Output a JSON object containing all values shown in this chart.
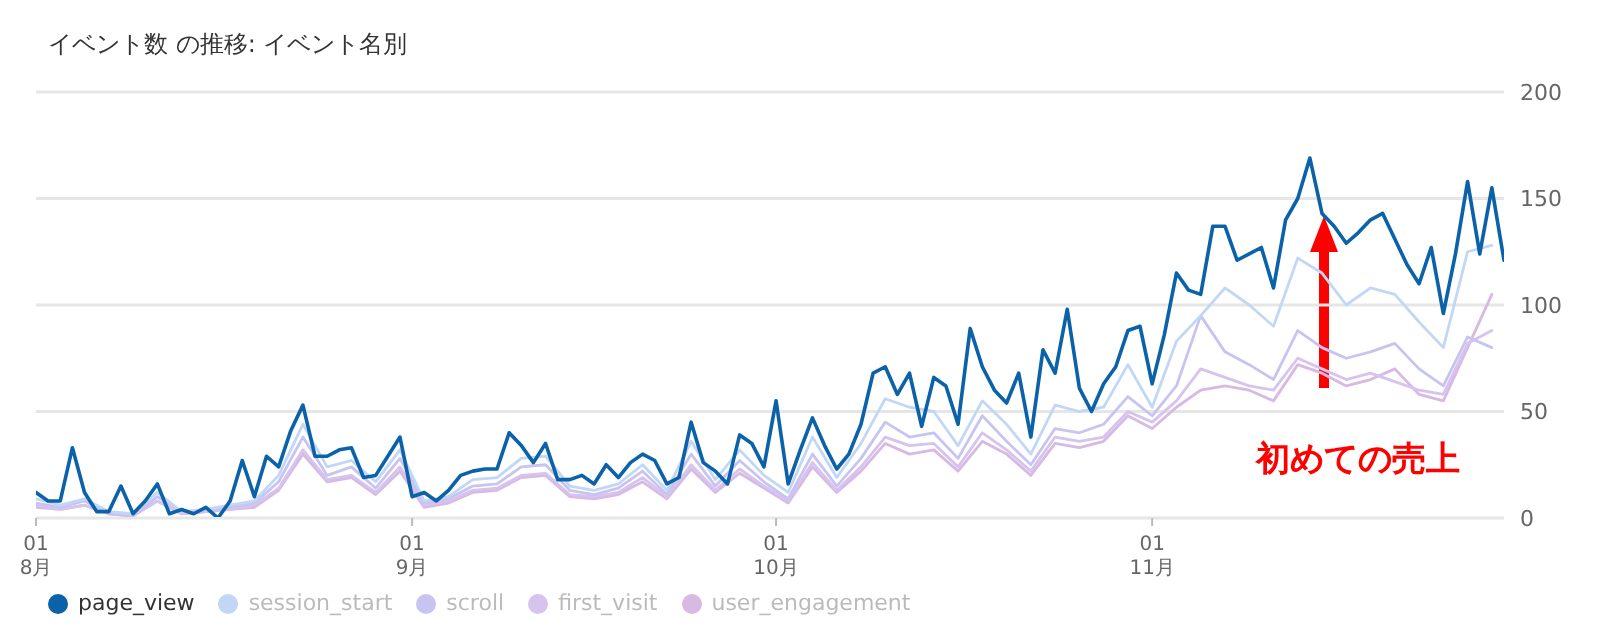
{
  "chart_data": {
    "type": "line",
    "title": "イベント数 の推移: イベント名別",
    "xlim": [
      "--08-01",
      "--11-30"
    ],
    "xticks": [
      {
        "value": "--08-01",
        "label": "01\n8月"
      },
      {
        "value": "--09-01",
        "label": "01\n9月"
      },
      {
        "value": "--10-01",
        "label": "01\n10月"
      },
      {
        "value": "--11-01",
        "label": "01\n11月"
      }
    ],
    "ylim": [
      0,
      200
    ],
    "yticks": [
      0,
      50,
      100,
      150,
      200
    ],
    "grid": "y",
    "legend": "bottom left",
    "marker": "none",
    "line_style": "solid",
    "x": [
      "--08-01",
      "--08-03",
      "--08-05",
      "--08-07",
      "--08-09",
      "--08-11",
      "--08-13",
      "--08-15",
      "--08-17",
      "--08-19",
      "--08-21",
      "--08-23",
      "--08-25",
      "--08-27",
      "--08-29",
      "--08-31",
      "--09-02",
      "--09-04",
      "--09-06",
      "--09-08",
      "--09-10",
      "--09-12",
      "--09-14",
      "--09-16",
      "--09-18",
      "--09-20",
      "--09-22",
      "--09-24",
      "--09-26",
      "--09-28",
      "--09-30",
      "--10-02",
      "--10-04",
      "--10-06",
      "--10-08",
      "--10-10",
      "--10-12",
      "--10-14",
      "--10-16",
      "--10-18",
      "--10-20",
      "--10-22",
      "--10-24",
      "--10-26",
      "--10-28",
      "--10-30",
      "--11-01",
      "--11-03",
      "--11-05",
      "--11-07",
      "--11-09",
      "--11-11",
      "--11-13",
      "--11-15",
      "--11-17",
      "--11-19",
      "--11-21",
      "--11-23",
      "--11-25",
      "--11-27",
      "--11-29"
    ],
    "series": [
      {
        "name": "page_view",
        "color": "#0b62a8",
        "x": [
          "--08-01",
          "--08-02",
          "--08-03",
          "--08-04",
          "--08-05",
          "--08-06",
          "--08-07",
          "--08-08",
          "--08-09",
          "--08-10",
          "--08-11",
          "--08-12",
          "--08-13",
          "--08-14",
          "--08-15",
          "--08-16",
          "--08-17",
          "--08-18",
          "--08-19",
          "--08-20",
          "--08-21",
          "--08-22",
          "--08-23",
          "--08-24",
          "--08-25",
          "--08-26",
          "--08-27",
          "--08-28",
          "--08-29",
          "--08-30",
          "--08-31",
          "--09-01",
          "--09-02",
          "--09-03",
          "--09-04",
          "--09-05",
          "--09-06",
          "--09-07",
          "--09-08",
          "--09-09",
          "--09-10",
          "--09-11",
          "--09-12",
          "--09-13",
          "--09-14",
          "--09-15",
          "--09-16",
          "--09-17",
          "--09-18",
          "--09-19",
          "--09-20",
          "--09-21",
          "--09-22",
          "--09-23",
          "--09-24",
          "--09-25",
          "--09-26",
          "--09-27",
          "--09-28",
          "--09-29",
          "--09-30",
          "--10-01",
          "--10-02",
          "--10-03",
          "--10-04",
          "--10-05",
          "--10-06",
          "--10-07",
          "--10-08",
          "--10-09",
          "--10-10",
          "--10-11",
          "--10-12",
          "--10-13",
          "--10-14",
          "--10-15",
          "--10-16",
          "--10-17",
          "--10-18",
          "--10-19",
          "--10-20",
          "--10-21",
          "--10-22",
          "--10-23",
          "--10-24",
          "--10-25",
          "--10-26",
          "--10-27",
          "--10-28",
          "--10-29",
          "--10-30",
          "--10-31",
          "--11-01",
          "--11-02",
          "--11-03",
          "--11-04",
          "--11-05",
          "--11-06",
          "--11-07",
          "--11-08",
          "--11-09",
          "--11-10",
          "--11-11",
          "--11-12",
          "--11-13",
          "--11-14",
          "--11-15",
          "--11-16",
          "--11-17",
          "--11-18",
          "--11-19",
          "--11-20",
          "--11-21",
          "--11-22",
          "--11-23",
          "--11-24",
          "--11-25",
          "--11-26",
          "--11-27",
          "--11-28",
          "--11-29",
          "--11-30"
        ],
        "values": [
          12,
          8,
          8,
          33,
          12,
          3,
          3,
          15,
          2,
          8,
          16,
          2,
          4,
          2,
          5,
          0,
          8,
          27,
          10,
          29,
          24,
          41,
          53,
          29,
          29,
          32,
          33,
          19,
          20,
          29,
          38,
          10,
          12,
          8,
          13,
          20,
          22,
          23,
          23,
          40,
          34,
          26,
          35,
          18,
          18,
          20,
          16,
          25,
          19,
          26,
          30,
          27,
          16,
          19,
          45,
          26,
          22,
          16,
          39,
          35,
          24,
          55,
          16,
          32,
          47,
          34,
          23,
          30,
          44,
          68,
          71,
          58,
          68,
          43,
          66,
          62,
          44,
          89,
          71,
          60,
          54,
          68,
          38,
          79,
          68,
          98,
          61,
          50,
          63,
          71,
          88,
          90,
          63,
          86,
          115,
          107,
          105,
          137,
          137,
          121,
          124,
          127,
          108,
          140,
          150,
          169,
          143,
          137,
          129,
          134,
          140,
          143,
          131,
          119,
          110,
          127,
          96,
          124,
          158,
          124,
          155,
          121
        ]
      },
      {
        "name": "session_start",
        "color": "#c2d7f5",
        "values": [
          9,
          6,
          9,
          3,
          2,
          12,
          3,
          4,
          6,
          8,
          20,
          44,
          24,
          27,
          17,
          32,
          8,
          10,
          18,
          19,
          28,
          29,
          15,
          13,
          16,
          25,
          13,
          36,
          18,
          32,
          20,
          12,
          38,
          19,
          35,
          56,
          52,
          50,
          34,
          55,
          44,
          30,
          53,
          50,
          52,
          72,
          52,
          83,
          95,
          108,
          100,
          90,
          122,
          115,
          100,
          108,
          105,
          92,
          80,
          125,
          128
        ]
      },
      {
        "name": "scroll",
        "color": "#c8c4f2",
        "values": [
          7,
          5,
          8,
          2,
          1,
          10,
          3,
          3,
          5,
          7,
          17,
          38,
          20,
          24,
          14,
          28,
          7,
          9,
          15,
          16,
          24,
          25,
          13,
          11,
          14,
          22,
          11,
          30,
          15,
          27,
          17,
          9,
          30,
          15,
          28,
          45,
          38,
          40,
          28,
          48,
          36,
          25,
          42,
          40,
          44,
          57,
          48,
          62,
          95,
          78,
          72,
          65,
          88,
          80,
          75,
          78,
          82,
          70,
          62,
          85,
          80
        ]
      },
      {
        "name": "first_visit",
        "color": "#d6c3ee",
        "values": [
          6,
          4,
          6,
          2,
          1,
          8,
          2,
          3,
          4,
          6,
          14,
          32,
          18,
          20,
          12,
          24,
          6,
          8,
          13,
          14,
          20,
          21,
          11,
          10,
          12,
          19,
          10,
          25,
          13,
          23,
          15,
          8,
          26,
          13,
          24,
          38,
          34,
          35,
          24,
          40,
          32,
          22,
          38,
          36,
          38,
          50,
          45,
          55,
          70,
          66,
          62,
          60,
          75,
          70,
          65,
          68,
          64,
          60,
          58,
          82,
          88
        ]
      },
      {
        "name": "user_engagement",
        "color": "#d7b9e4",
        "values": [
          5,
          4,
          6,
          2,
          1,
          8,
          2,
          3,
          4,
          5,
          13,
          30,
          17,
          19,
          11,
          22,
          5,
          7,
          12,
          13,
          19,
          20,
          10,
          9,
          11,
          17,
          9,
          23,
          12,
          21,
          14,
          7,
          24,
          12,
          22,
          35,
          30,
          32,
          22,
          36,
          30,
          20,
          35,
          33,
          36,
          48,
          42,
          52,
          60,
          62,
          60,
          55,
          72,
          68,
          62,
          65,
          70,
          58,
          55,
          80,
          105
        ]
      }
    ],
    "annotations": [
      "初めての売上"
    ]
  }
}
